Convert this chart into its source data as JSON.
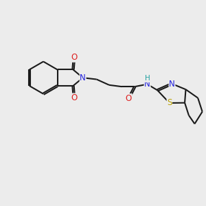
{
  "bg_color": "#ececec",
  "bond_color": "#1a1a1a",
  "bond_lw": 1.5,
  "dbo": 0.06,
  "atom_colors": {
    "N": "#2020dd",
    "O": "#dd2020",
    "S": "#b8a000",
    "H": "#20a0a0"
  },
  "fs": 8.5,
  "xlim": [
    0,
    10
  ],
  "ylim": [
    0,
    10
  ]
}
